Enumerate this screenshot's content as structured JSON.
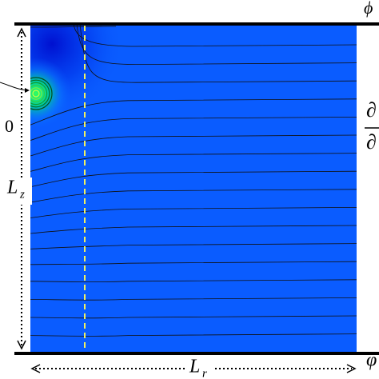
{
  "labels": {
    "top_right": "ϕ",
    "fraction_top": "∂",
    "fraction_bottom": "∂",
    "bottom_right": "φ",
    "left_zero": "0",
    "height": {
      "main": "L",
      "sub": "z"
    },
    "width": {
      "main": "L",
      "sub": "r"
    }
  }
}
